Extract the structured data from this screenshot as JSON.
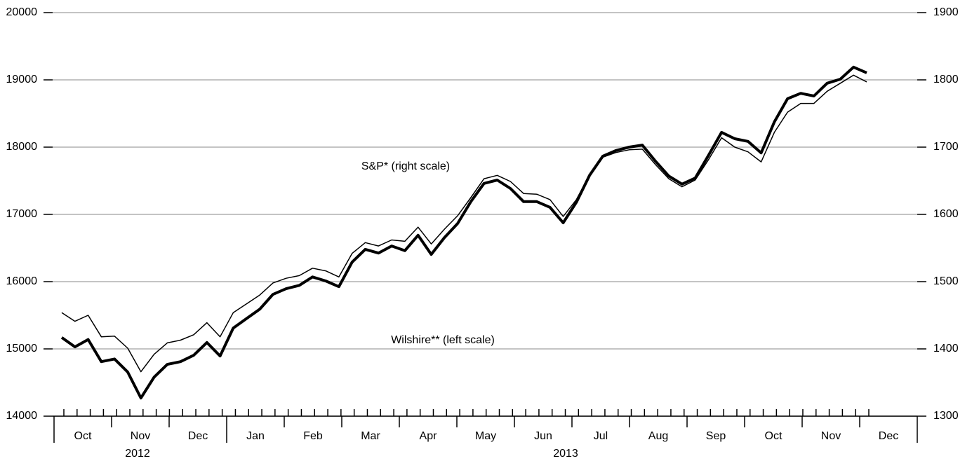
{
  "chart_data": {
    "type": "line",
    "annotations": [
      "S&P* (right scale)",
      "Wilshire** (left scale)"
    ],
    "months": [
      "Oct",
      "Nov",
      "Dec",
      "Jan",
      "Feb",
      "Mar",
      "Apr",
      "May",
      "Jun",
      "Jul",
      "Aug",
      "Sep",
      "Oct",
      "Nov",
      "Dec"
    ],
    "years": [
      "2012",
      "2013"
    ],
    "grid": true,
    "ylim": [
      14000,
      20000
    ],
    "yticks": [
      14000,
      15000,
      16000,
      17000,
      18000,
      19000,
      20000
    ],
    "y2lim": [
      1300,
      1900
    ],
    "y2ticks": [
      1300,
      1400,
      1500,
      1600,
      1700,
      1800,
      1900
    ],
    "series": [
      {
        "name": "Wilshire",
        "color": "#000000",
        "axis": "y",
        "values": [
          15170,
          15030,
          15140,
          14810,
          14850,
          14655,
          14270,
          14580,
          14770,
          14810,
          14905,
          15095,
          14895,
          15310,
          15450,
          15590,
          15810,
          15895,
          15945,
          16070,
          16010,
          15925,
          16290,
          16480,
          16425,
          16530,
          16460,
          16690,
          16405,
          16655,
          16865,
          17190,
          17460,
          17510,
          17385,
          17190,
          17190,
          17105,
          16875,
          17180,
          17580,
          17865,
          17950,
          18000,
          18030,
          17790,
          17570,
          17450,
          17540,
          17875,
          18220,
          18125,
          18085,
          17915,
          18375,
          18720,
          18800,
          18760,
          18950,
          19010,
          19190,
          19105
        ]
      },
      {
        "name": "S&P",
        "color": "#000000",
        "axis": "y2",
        "values": [
          1454,
          1441,
          1450,
          1418,
          1419,
          1401,
          1366,
          1392,
          1409,
          1413,
          1421,
          1439,
          1418,
          1454,
          1467,
          1480,
          1498,
          1505,
          1509,
          1520,
          1516,
          1507,
          1542,
          1558,
          1553,
          1562,
          1560,
          1581,
          1556,
          1578,
          1598,
          1625,
          1653,
          1658,
          1649,
          1631,
          1630,
          1622,
          1597,
          1622,
          1659,
          1685,
          1692,
          1696,
          1697,
          1674,
          1653,
          1641,
          1651,
          1681,
          1714,
          1700,
          1693,
          1678,
          1722,
          1752,
          1765,
          1765,
          1783,
          1795,
          1807,
          1797
        ]
      }
    ]
  }
}
